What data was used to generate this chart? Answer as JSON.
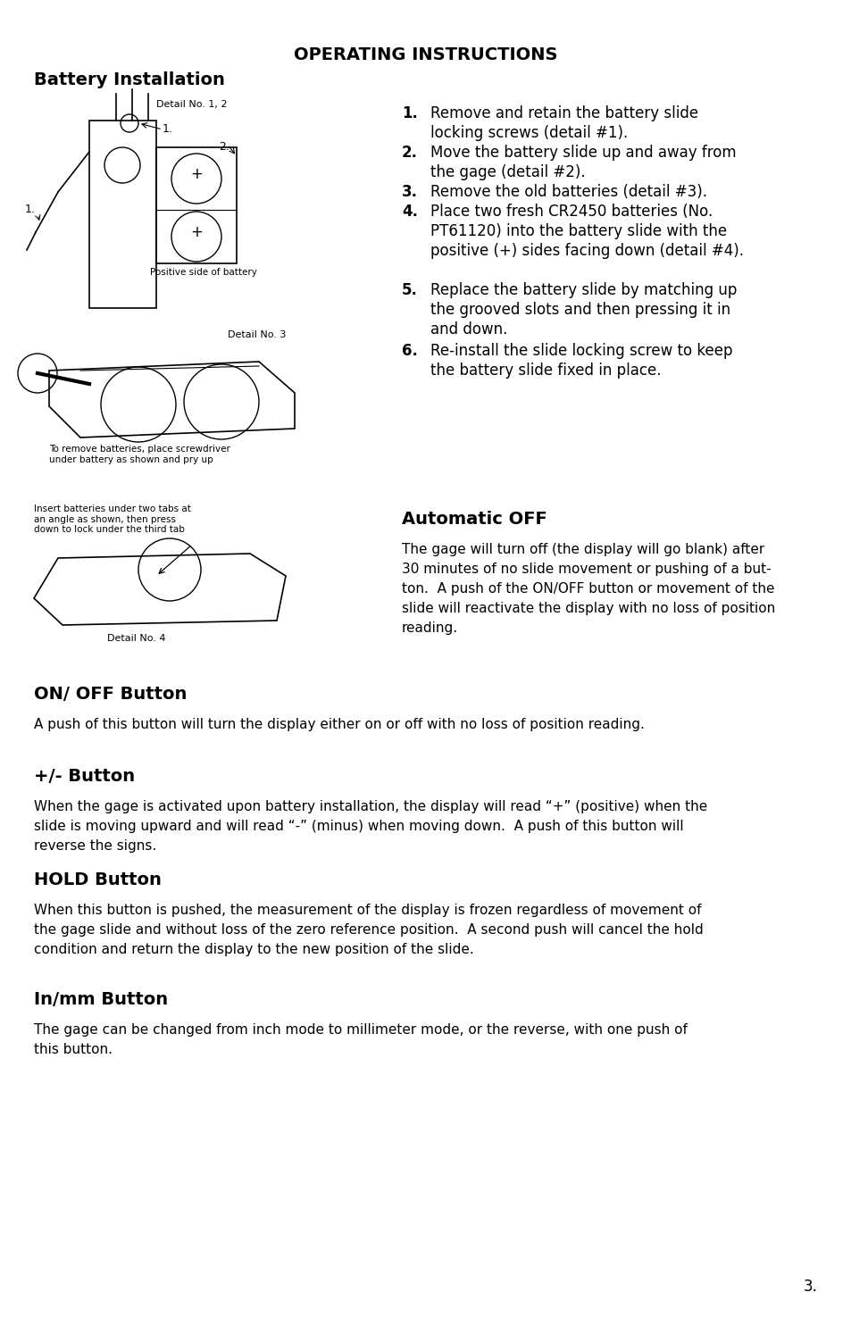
{
  "title": "OPERATING INSTRUCTIONS",
  "section1_title": "Battery Installation",
  "numbered_items": [
    [
      "Remove and retain the battery slide",
      "locking screws (detail #1)."
    ],
    [
      "Move the battery slide up and away from",
      "the gage (detail #2)."
    ],
    [
      "Remove the old batteries (detail #3)."
    ],
    [
      "Place two fresh CR2450 batteries (No.",
      "PT61120) into the battery slide with the",
      "positive (+) sides facing down (detail #4)."
    ],
    [
      "Replace the battery slide by matching up",
      "the grooved slots and then pressing it in",
      "and down."
    ],
    [
      "Re-install the slide locking screw to keep",
      "the battery slide fixed in place."
    ]
  ],
  "auto_off_title": "Automatic OFF",
  "auto_off_text": "The gage will turn off (the display will go blank) after\n30 minutes of no slide movement or pushing of a but-\nton.  A push of the ON/OFF button or movement of the\nslide will reactivate the display with no loss of position\nreading.",
  "on_off_title": "ON/ OFF Button",
  "on_off_text": "A push of this button will turn the display either on or off with no loss of position reading.",
  "plus_minus_title": "+/- Button",
  "plus_minus_text": "When the gage is activated upon battery installation, the display will read “+” (positive) when the\nslide is moving upward and will read “-” (minus) when moving down.  A push of this button will\nreverse the signs.",
  "hold_title": "HOLD Button",
  "hold_text": "When this button is pushed, the measurement of the display is frozen regardless of movement of\nthe gage slide and without loss of the zero reference position.  A second push will cancel the hold\ncondition and return the display to the new position of the slide.",
  "inmm_title": "In/mm Button",
  "inmm_text": "The gage can be changed from inch mode to millimeter mode, or the reverse, with one push of\nthis button.",
  "page_number": "3.",
  "detail_no_1_2": "Detail No. 1, 2",
  "label_1_upper": "1.",
  "label_2": "2.",
  "label_1_left": "1.",
  "positive_side": "Positive side of battery",
  "detail_no_3": "Detail No. 3",
  "remove_batteries_text": "To remove batteries, place screwdriver\nunder battery as shown and pry up",
  "insert_batteries_text": "Insert batteries under two tabs at\nan angle as shown, then press\ndown to lock under the third tab",
  "detail_no_4": "Detail No. 4",
  "bg_color": "#ffffff",
  "text_color": "#000000"
}
